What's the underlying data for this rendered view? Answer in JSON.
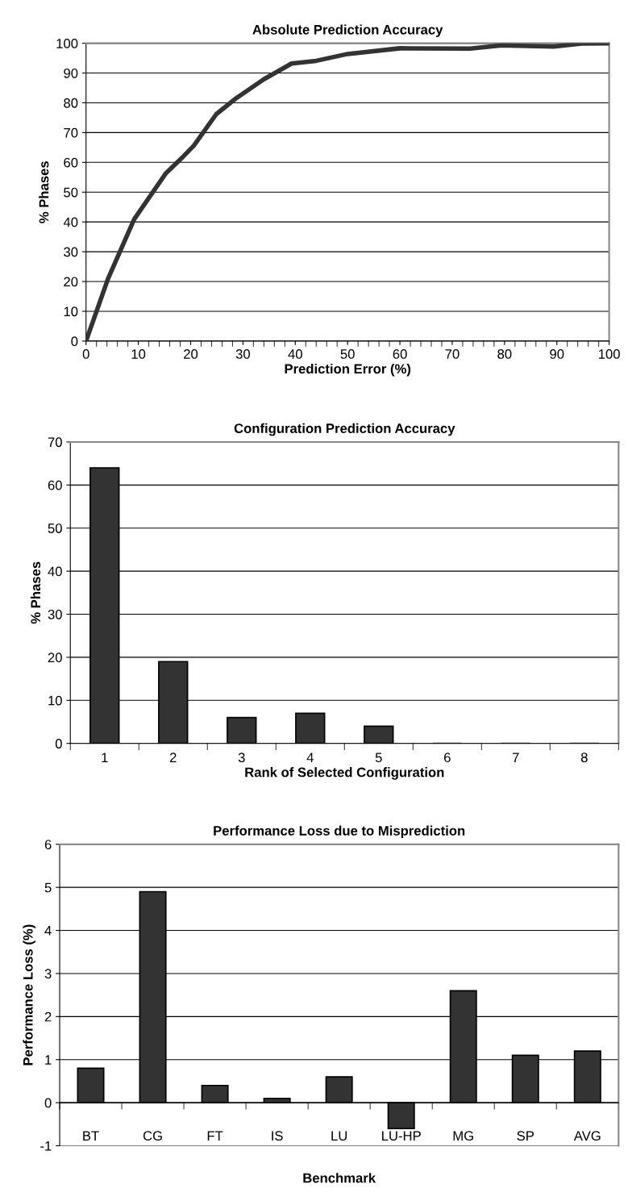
{
  "chart_data": [
    {
      "type": "line",
      "title": "Absolute Prediction Accuracy",
      "xlabel": "Prediction Error (%)",
      "ylabel": "% Phases",
      "x": [
        0,
        4.2,
        9.2,
        15.2,
        18.6,
        20.6,
        24.9,
        28.6,
        34,
        39.3,
        44,
        50,
        60,
        73.4,
        79.4,
        89.4,
        94.7,
        100
      ],
      "series": [
        {
          "color": "#333333",
          "values": [
            0,
            20.9,
            40.9,
            56.2,
            62,
            65.6,
            76.2,
            81.4,
            87.9,
            93.2,
            94.1,
            96.4,
            98.3,
            98.2,
            99.3,
            98.9,
            99.9,
            100
          ]
        }
      ],
      "xlim": [
        0,
        100
      ],
      "xticks": [
        0,
        10,
        20,
        30,
        40,
        50,
        60,
        70,
        80,
        90,
        100
      ],
      "ylim": [
        0,
        100
      ],
      "yticks": [
        0,
        10,
        20,
        30,
        40,
        50,
        60,
        70,
        80,
        90,
        100
      ],
      "grid": "y"
    },
    {
      "type": "bar",
      "title": "Configuration Prediction Accuracy",
      "xlabel": "Rank of Selected Configuration",
      "ylabel": "% Phases",
      "categories": [
        "1",
        "2",
        "3",
        "4",
        "5",
        "6",
        "7",
        "8"
      ],
      "series": [
        {
          "color": "#333333",
          "values": [
            64,
            19,
            6,
            7,
            4,
            0,
            0,
            0
          ]
        }
      ],
      "ylim": [
        0,
        70
      ],
      "yticks": [
        0,
        10,
        20,
        30,
        40,
        50,
        60,
        70
      ],
      "grid": "y"
    },
    {
      "type": "bar",
      "title": "Performance Loss due to Misprediction",
      "xlabel": "Benchmark",
      "ylabel": "Performance Loss (%)",
      "categories": [
        "BT",
        "CG",
        "FT",
        "IS",
        "LU",
        "LU-HP",
        "MG",
        "SP",
        "AVG"
      ],
      "series": [
        {
          "color": "#333333",
          "values": [
            0.8,
            4.9,
            0.4,
            0.1,
            0.6,
            -0.6,
            2.6,
            1.1,
            1.2
          ]
        }
      ],
      "ylim": [
        -1,
        6
      ],
      "yticks": [
        -1,
        0,
        1,
        2,
        3,
        4,
        5,
        6
      ],
      "grid": "y"
    }
  ]
}
